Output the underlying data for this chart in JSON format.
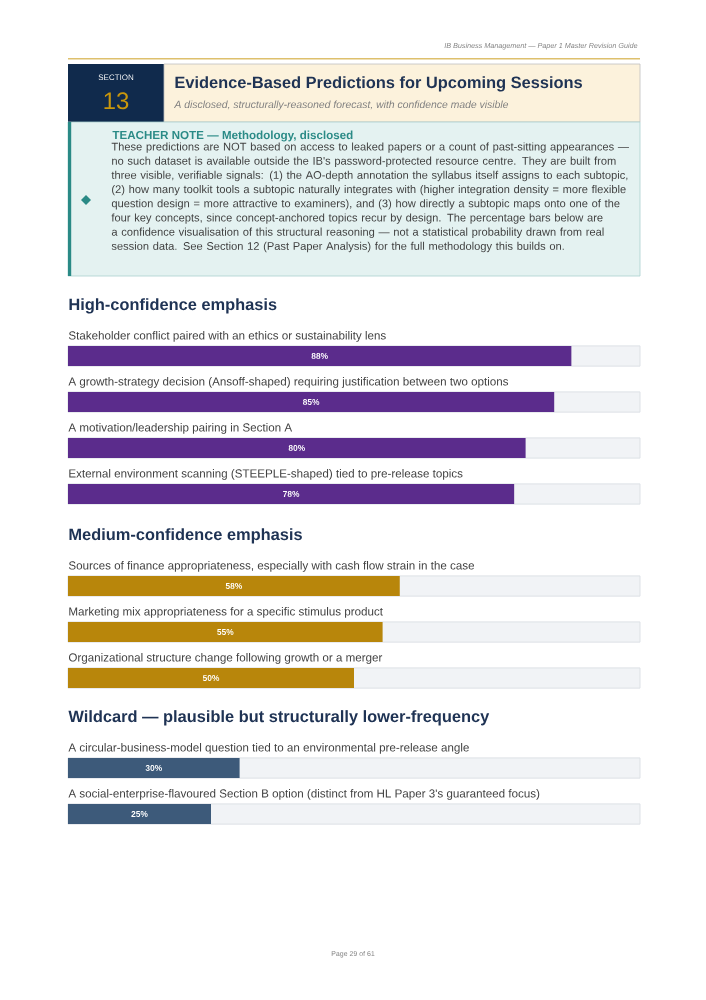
{
  "chart_data": [
    {
      "type": "bar",
      "orientation": "horizontal",
      "title": "High-confidence emphasis",
      "categories": [
        "Stakeholder conflict paired with an ethics or sustainability lens",
        "A growth-strategy decision (Ansoff-shaped) requiring justification between two options",
        "A motivation/leadership pairing in Section A",
        "External environment scanning (STEEPLE-shaped) tied to pre-release topics"
      ],
      "values": [
        88,
        85,
        80,
        78
      ],
      "value_labels": [
        "88%",
        "85%",
        "80%",
        "78%"
      ],
      "color": "#5b2c8c",
      "xlim": [
        0,
        100
      ],
      "annotations": [
        "IB Business Management — Paper 1 Master Revision Guide",
        "SECTION",
        "13",
        "Evidence-Based Predictions for Upcoming Sessions",
        "A disclosed, structurally-reasoned forecast, with confidence made visible",
        "TEACHER NOTE — Methodology, disclosed",
        "These predictions are NOT based on access to leaked papers or a count of past-sitting appearances — no such dataset is available outside the IB's password-protected resource centre. They are built from three visible, verifiable signals: (1) the AO-depth annotation the syllabus itself assigns to each subtopic, (2) how many toolkit tools a subtopic naturally integrates with (higher integration density = more flexible question design = more attractive to examiners), and (3) how directly a subtopic maps onto one of the four key concepts, since concept-anchored topics recur by design. The percentage bars below are a confidence visualisation of this structural reasoning — not a statistical probability drawn from real session data. See Section 12 (Past Paper Analysis) for the full methodology this builds on.",
        "Page 29 of 61"
      ]
    },
    {
      "type": "bar",
      "orientation": "horizontal",
      "title": "Medium-confidence emphasis",
      "categories": [
        "Sources of finance appropriateness, especially with cash flow strain in the case",
        "Marketing mix appropriateness for a specific stimulus product",
        "Organizational structure change following growth or a merger"
      ],
      "values": [
        58,
        55,
        50
      ],
      "value_labels": [
        "58%",
        "55%",
        "50%"
      ],
      "color": "#b8860b",
      "xlim": [
        0,
        100
      ]
    },
    {
      "type": "bar",
      "orientation": "horizontal",
      "title": "Wildcard — plausible but structurally lower-frequency",
      "categories": [
        "A circular-business-model question tied to an environmental pre-release angle",
        "A social-enterprise-flavoured Section B option (distinct from HL Paper 3's guaranteed focus)"
      ],
      "values": [
        30,
        25
      ],
      "value_labels": [
        "30%",
        "25%"
      ],
      "color": "#3d5a7a",
      "xlim": [
        0,
        100
      ]
    }
  ]
}
